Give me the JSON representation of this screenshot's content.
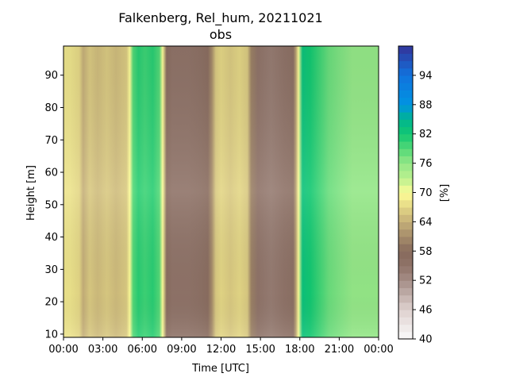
{
  "chart_data": {
    "type": "heatmap",
    "title_line1": "Falkenberg, Rel_hum, 20211021",
    "title_line2": "obs",
    "xlabel": "Time [UTC]",
    "ylabel": "Height [m]",
    "colorbar_label": "[%]",
    "x_ticks": [
      "00:00",
      "03:00",
      "06:00",
      "09:00",
      "12:00",
      "15:00",
      "18:00",
      "21:00",
      "00:00"
    ],
    "x_range_hours": [
      0,
      24
    ],
    "y_ticks": [
      10,
      20,
      30,
      40,
      50,
      60,
      70,
      80,
      90
    ],
    "y_range": [
      9,
      99
    ],
    "colorbar_ticks": [
      40,
      46,
      52,
      58,
      64,
      70,
      76,
      82,
      88,
      94
    ],
    "colorbar_range": [
      40,
      100
    ],
    "colormap": "terrain_r",
    "time_profile_hours": [
      0,
      0.5,
      1.2,
      1.5,
      2.0,
      2.6,
      3.3,
      4.0,
      4.8,
      5.05,
      5.3,
      5.7,
      6.2,
      6.8,
      7.3,
      7.55,
      7.85,
      8.3,
      9.5,
      10.5,
      11.0,
      11.3,
      11.6,
      12.0,
      12.7,
      13.4,
      14.0,
      14.3,
      14.8,
      15.8,
      16.8,
      17.5,
      17.7,
      17.9,
      18.2,
      18.8,
      19.5,
      20.2,
      21.0,
      22.0,
      23.0,
      24.0
    ],
    "time_profile_rh": [
      68,
      68,
      67,
      64,
      66,
      65,
      66,
      65,
      66,
      70,
      79,
      81,
      80,
      81,
      79,
      70,
      57,
      55,
      55,
      56,
      57,
      61,
      66,
      67,
      66,
      67,
      66,
      60,
      55,
      54,
      55,
      56,
      63,
      70,
      83,
      82,
      80,
      78,
      77,
      76,
      76,
      76
    ]
  }
}
